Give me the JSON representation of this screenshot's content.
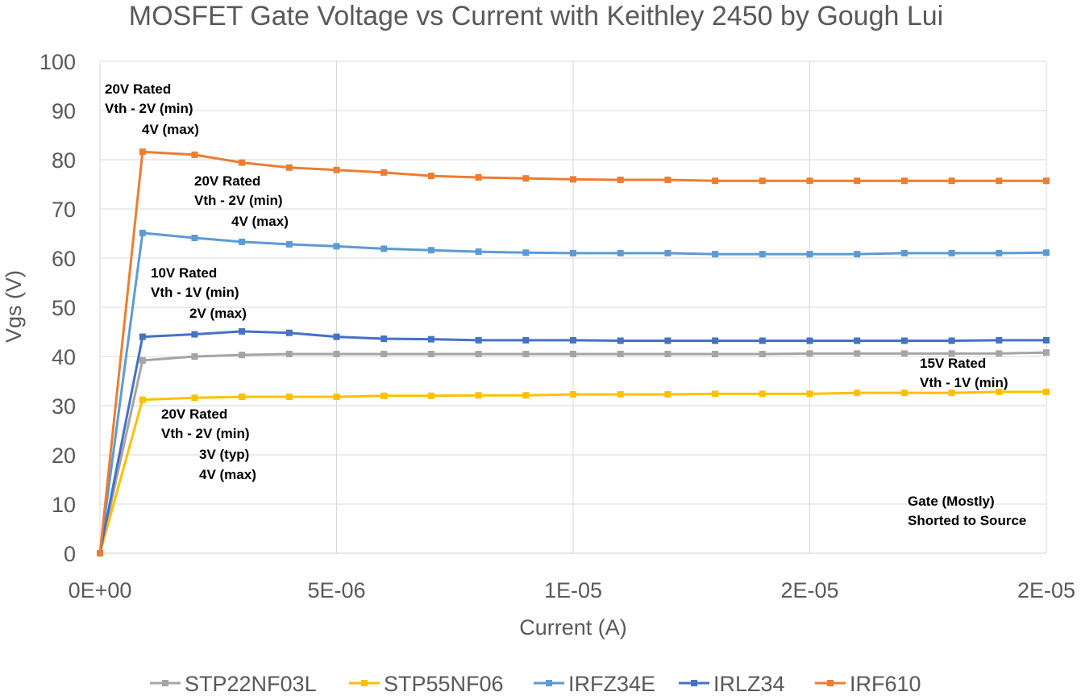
{
  "chart_data": {
    "type": "line",
    "title": "MOSFET Gate Voltage vs Current with Keithley 2450 by Gough Lui",
    "xlabel": "Current (A)",
    "ylabel": "Vgs (V)",
    "xlim": [
      0,
      2e-05
    ],
    "ylim": [
      0,
      100
    ],
    "y_ticks": [
      0,
      10,
      20,
      30,
      40,
      50,
      60,
      70,
      80,
      90,
      100
    ],
    "x_ticks": [
      0,
      5e-06,
      1e-05,
      1.5e-05,
      2e-05
    ],
    "x_tick_labels": [
      "0E+00",
      "5E-06",
      "1E-05",
      "2E-05",
      "2E-05"
    ],
    "grid": true,
    "legend_position": "bottom",
    "x": [
      0,
      9e-07,
      2e-06,
      3e-06,
      4e-06,
      5e-06,
      6e-06,
      7e-06,
      8e-06,
      9e-06,
      1e-05,
      1.1e-05,
      1.2e-05,
      1.3e-05,
      1.4e-05,
      1.5e-05,
      1.6e-05,
      1.7e-05,
      1.8e-05,
      1.9e-05,
      2e-05
    ],
    "series": [
      {
        "name": "STP22NF03L",
        "color": "#A5A5A5",
        "values": [
          0,
          39.2,
          40.0,
          40.3,
          40.5,
          40.5,
          40.5,
          40.5,
          40.5,
          40.5,
          40.5,
          40.5,
          40.5,
          40.5,
          40.5,
          40.6,
          40.6,
          40.6,
          40.6,
          40.6,
          40.8
        ]
      },
      {
        "name": "STP55NF06",
        "color": "#FFC000",
        "values": [
          0,
          31.2,
          31.6,
          31.8,
          31.8,
          31.8,
          32.0,
          32.0,
          32.1,
          32.1,
          32.3,
          32.3,
          32.3,
          32.4,
          32.4,
          32.4,
          32.6,
          32.6,
          32.6,
          32.8,
          32.8
        ]
      },
      {
        "name": "IRFZ34E",
        "color": "#5B9BD5",
        "values": [
          0,
          65.1,
          64.1,
          63.3,
          62.8,
          62.4,
          61.9,
          61.6,
          61.3,
          61.1,
          61.0,
          61.0,
          61.0,
          60.8,
          60.8,
          60.8,
          60.8,
          61.0,
          61.0,
          61.0,
          61.1
        ]
      },
      {
        "name": "IRLZ34",
        "color": "#4472C4",
        "values": [
          0,
          44.0,
          44.5,
          45.1,
          44.8,
          44.0,
          43.6,
          43.5,
          43.3,
          43.3,
          43.3,
          43.2,
          43.2,
          43.2,
          43.2,
          43.2,
          43.2,
          43.2,
          43.2,
          43.3,
          43.3
        ]
      },
      {
        "name": "IRF610",
        "color": "#ED7D31",
        "values": [
          0,
          81.6,
          81.0,
          79.4,
          78.4,
          77.9,
          77.4,
          76.7,
          76.4,
          76.2,
          76.0,
          75.9,
          75.9,
          75.7,
          75.7,
          75.7,
          75.7,
          75.7,
          75.7,
          75.7,
          75.7
        ]
      }
    ],
    "annotations": [
      {
        "id": "irf610-note",
        "lines": [
          "20V Rated",
          "Vth - 2V (min)",
          "4V (max)"
        ]
      },
      {
        "id": "irfz34e-note",
        "lines": [
          "20V Rated",
          "Vth - 2V (min)",
          "4V (max)"
        ]
      },
      {
        "id": "irlz34-note",
        "lines": [
          "10V Rated",
          "Vth - 1V (min)",
          "2V (max)"
        ]
      },
      {
        "id": "stp55nf06-note",
        "lines": [
          "20V Rated",
          "Vth - 2V (min)",
          "3V (typ)",
          "4V (max)"
        ]
      },
      {
        "id": "stp22nf03l-note",
        "lines": [
          "15V Rated",
          "Vth - 1V (min)"
        ]
      },
      {
        "id": "origin-note",
        "lines": [
          "Gate (Mostly)",
          "Shorted to Source"
        ]
      }
    ]
  }
}
